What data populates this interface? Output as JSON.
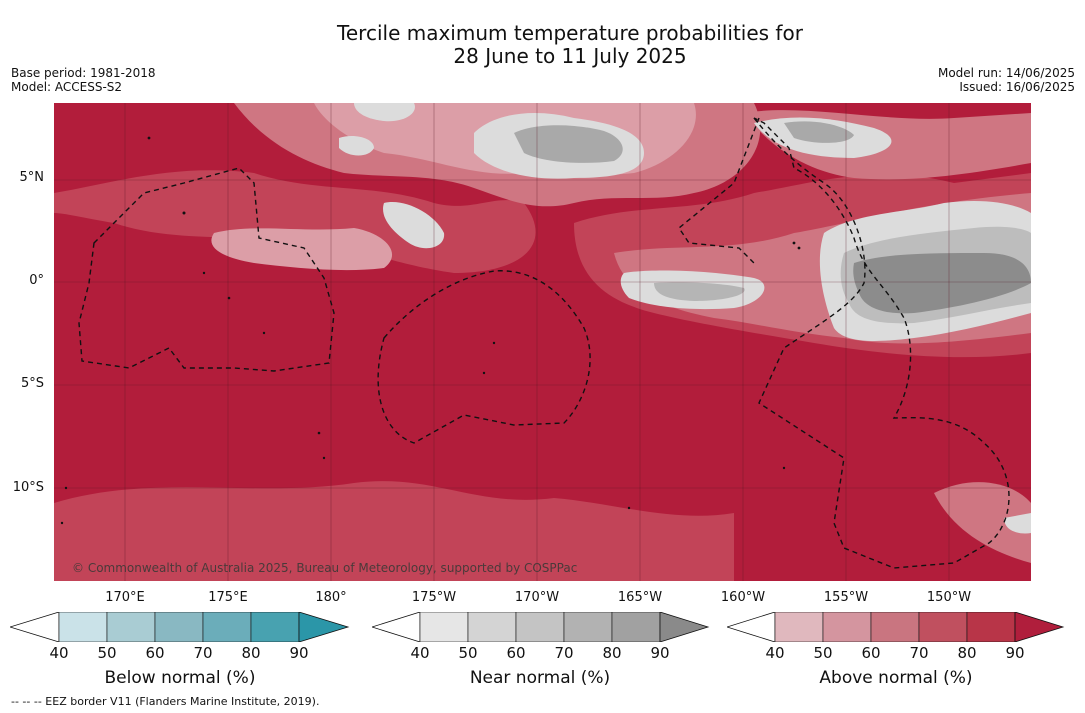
{
  "title_line1": "Tercile maximum temperature probabilities for",
  "title_line2": "28 June to 11 July 2025",
  "base_period": "Base period: 1981-2018",
  "model": "Model: ACCESS-S2",
  "model_run": "Model run: 14/06/2025",
  "issued": "Issued: 16/06/2025",
  "copyright": "© Commonwealth of Australia 2025, Bureau of Meteorology, supported by COSPPac",
  "lat_labels": [
    "5°N",
    "0°",
    "5°S",
    "10°S"
  ],
  "lon_labels": [
    "170°E",
    "175°E",
    "180°",
    "175°W",
    "170°W",
    "165°W",
    "160°W",
    "155°W",
    "150°W"
  ],
  "colorbars": [
    {
      "label": "Below normal (%)",
      "colors": [
        "#ffffff",
        "#cae2e8",
        "#a9ccd3",
        "#89b8c2",
        "#6badba",
        "#48a2b0",
        "#2b96a8"
      ]
    },
    {
      "label": "Near normal (%)",
      "colors": [
        "#ffffff",
        "#e6e6e6",
        "#d4d4d4",
        "#c4c4c4",
        "#b2b2b2",
        "#a1a1a1",
        "#8a8a8a"
      ]
    },
    {
      "label": "Above normal (%)",
      "colors": [
        "#ffffff",
        "#e0b8be",
        "#d4959f",
        "#c97580",
        "#c0505f",
        "#b83548",
        "#b01e3c"
      ]
    }
  ],
  "ticks": [
    "40",
    "50",
    "60",
    "70",
    "80",
    "90"
  ],
  "footnote": "--  --  -- EEZ border V11 (Flanders Marine Institute, 2019).",
  "colors": {
    "above_dark": "#b21d3b",
    "above_mid": "#c24458",
    "above_light": "#cf7682",
    "above_pale": "#dc9ea7",
    "near_light": "#dcdcdc",
    "near_mid": "#bdbdbd",
    "near_dark": "#8c8c8c"
  }
}
